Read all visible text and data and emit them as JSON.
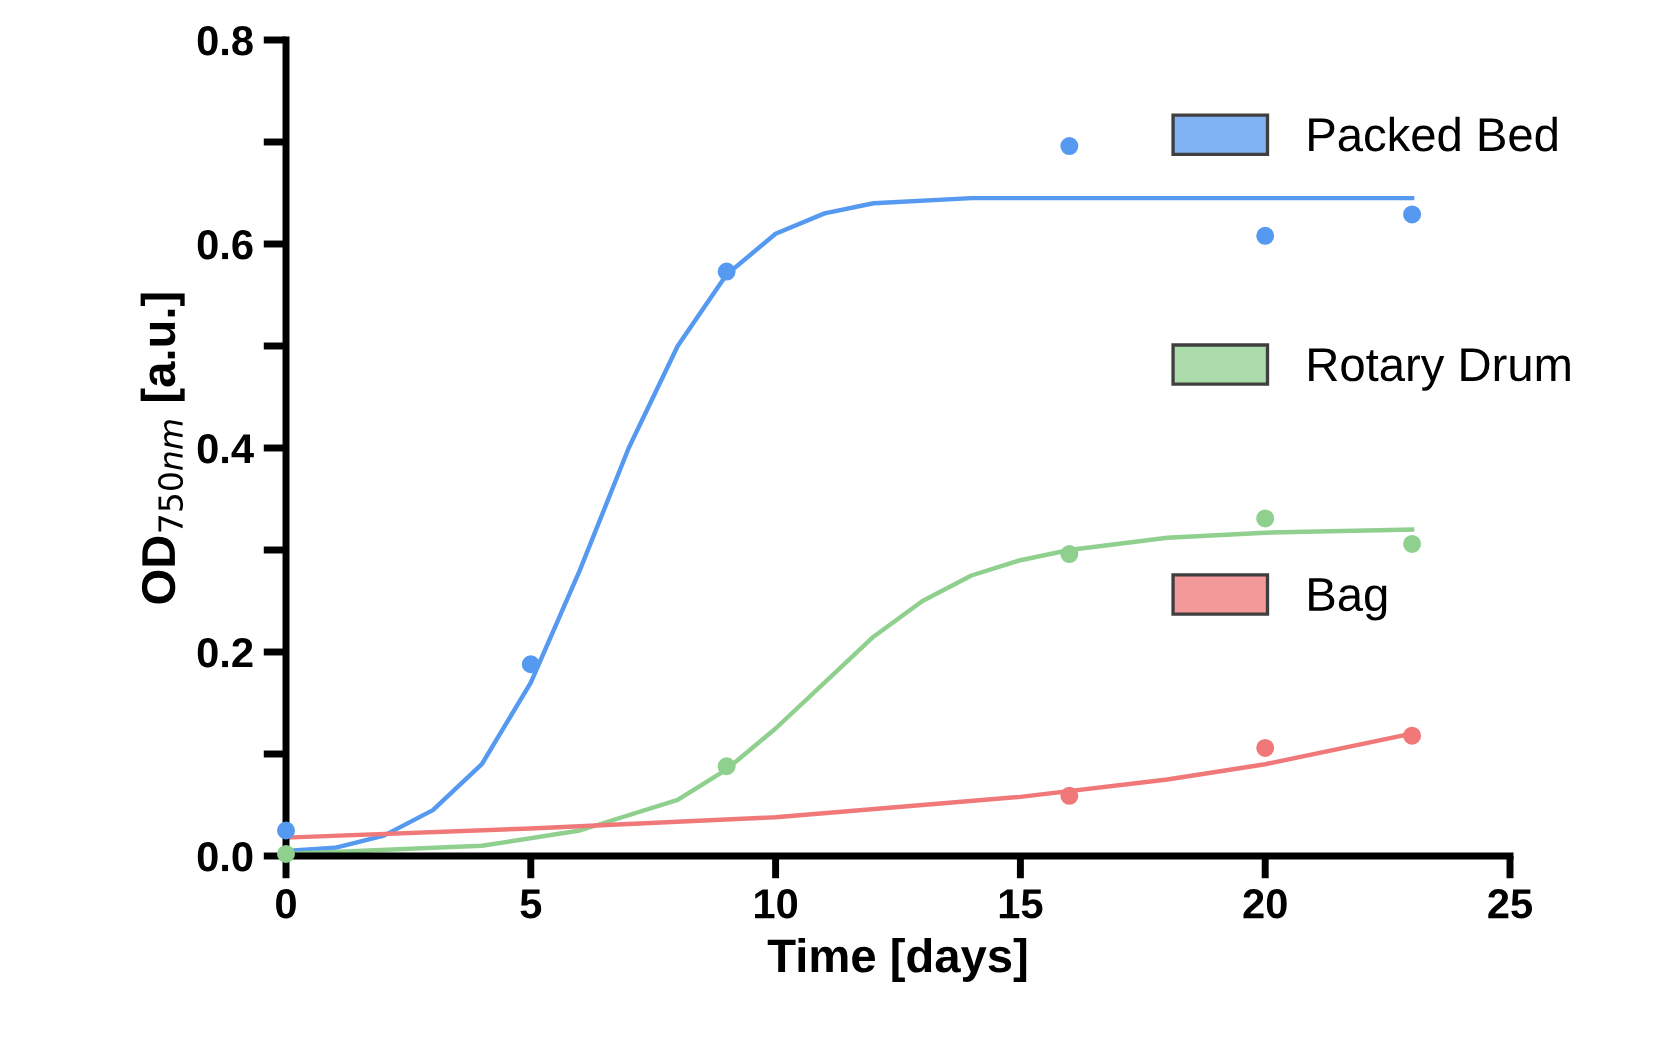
{
  "chart_data": {
    "type": "scatter",
    "xlabel": "Time [days]",
    "ylabel": "OD$_{750nm}$ [a.u.]",
    "xlim": [
      0,
      25
    ],
    "xticks": [
      0,
      5,
      10,
      15,
      20,
      25
    ],
    "ylim": [
      0,
      0.8
    ],
    "yticks": [
      {
        "value": 0,
        "label": "0.0"
      },
      {
        "value": 0.1,
        "label": null
      },
      0.2,
      {
        "value": 0.3,
        "label": null
      },
      0.4,
      {
        "value": 0.5,
        "label": null
      },
      0.6,
      {
        "value": 0.7,
        "label": null
      },
      0.8
    ],
    "grid": false,
    "legend": "right",
    "marker": "circle",
    "series": [
      {
        "name": "Packed Bed",
        "color": "#5599f0",
        "x": [
          0,
          5,
          9,
          16,
          20,
          23
        ],
        "values": [
          0.025,
          0.188,
          0.573,
          0.696,
          0.608,
          0.629
        ]
      },
      {
        "name": "Rotary Drum",
        "color": "#8fd08f",
        "x": [
          0,
          9,
          16,
          20,
          23
        ],
        "values": [
          0.002,
          0.088,
          0.296,
          0.331,
          0.306
        ]
      },
      {
        "name": "Bag",
        "color": "#f07878",
        "x": [
          16,
          20,
          23
        ],
        "values": [
          0.059,
          0.106,
          0.118
        ]
      },
      {
        "type": "line",
        "marker": "none",
        "color": "#5599f0",
        "x": [
          0,
          1,
          2,
          3,
          4,
          5,
          6,
          7,
          8,
          9,
          10,
          11,
          12,
          14,
          18,
          23
        ],
        "values": [
          0.005,
          0.008,
          0.02,
          0.045,
          0.09,
          0.17,
          0.28,
          0.4,
          0.5,
          0.57,
          0.61,
          0.63,
          0.64,
          0.645,
          0.645,
          0.645
        ]
      },
      {
        "type": "line",
        "marker": "none",
        "color": "#8fd08f",
        "x": [
          0,
          4,
          6,
          8,
          9,
          10,
          11,
          12,
          13,
          14,
          15,
          16,
          18,
          20,
          23
        ],
        "values": [
          0.002,
          0.01,
          0.025,
          0.055,
          0.085,
          0.125,
          0.17,
          0.215,
          0.25,
          0.275,
          0.29,
          0.3,
          0.312,
          0.317,
          0.32
        ]
      },
      {
        "type": "line",
        "marker": "none",
        "color": "#f07878",
        "x": [
          0,
          5,
          10,
          15,
          18,
          20,
          23
        ],
        "values": [
          0.018,
          0.027,
          0.038,
          0.058,
          0.075,
          0.09,
          0.12
        ]
      }
    ]
  }
}
